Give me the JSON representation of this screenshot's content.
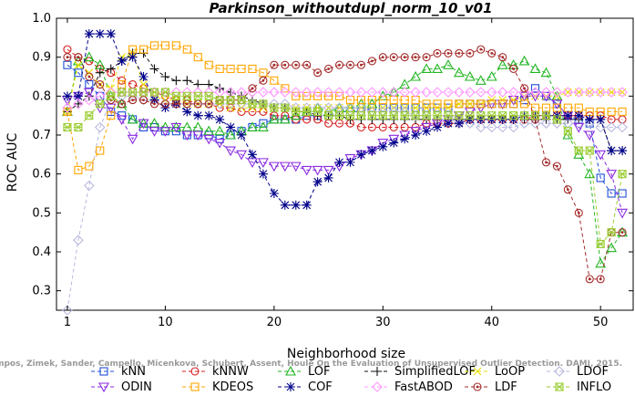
{
  "chart_data": {
    "type": "line",
    "title": "Parkinson_withoutdupl_norm_10_v01",
    "xlabel": "Neighborhood size",
    "ylabel": "ROC AUC",
    "xlim": [
      0,
      53
    ],
    "ylim": [
      0.25,
      1.0
    ],
    "xticks": [
      1,
      10,
      20,
      30,
      40,
      50
    ],
    "yticks": [
      0.3,
      0.4,
      0.5,
      0.6,
      0.7,
      0.8,
      0.9,
      1.0
    ],
    "xtick_labels": [
      "1",
      "10",
      "20",
      "30",
      "40",
      "50"
    ],
    "ytick_labels": [
      "0.3",
      "0.4",
      "0.5",
      "0.6",
      "0.7",
      "0.8",
      "0.9",
      "1.0"
    ],
    "grid": false,
    "legend_position": "bottom",
    "credit": "Campos, Zimek, Sander, Campello, Micenkova, Schubert, Assent, Houle On the Evaluation of Unsupervised Outlier Detection. DAMI, 2015.",
    "x": [
      1,
      2,
      3,
      4,
      5,
      6,
      7,
      8,
      9,
      10,
      11,
      12,
      13,
      14,
      15,
      16,
      17,
      18,
      19,
      20,
      21,
      22,
      23,
      24,
      25,
      26,
      27,
      28,
      29,
      30,
      31,
      32,
      33,
      34,
      35,
      36,
      37,
      38,
      39,
      40,
      41,
      42,
      43,
      44,
      45,
      46,
      47,
      48,
      49,
      50,
      51,
      52
    ],
    "series": [
      {
        "name": "kNN",
        "color": "#1f4fd6",
        "marker": "square",
        "values": [
          0.88,
          0.86,
          0.83,
          0.8,
          0.76,
          0.75,
          0.74,
          0.72,
          0.72,
          0.71,
          0.71,
          0.7,
          0.7,
          0.7,
          0.69,
          0.7,
          0.71,
          0.72,
          0.73,
          0.74,
          0.74,
          0.74,
          0.75,
          0.75,
          0.75,
          0.76,
          0.76,
          0.76,
          0.77,
          0.77,
          0.77,
          0.77,
          0.77,
          0.77,
          0.77,
          0.77,
          0.78,
          0.78,
          0.78,
          0.78,
          0.78,
          0.78,
          0.79,
          0.82,
          0.8,
          0.78,
          0.75,
          0.74,
          0.73,
          0.59,
          0.55,
          0.55
        ]
      },
      {
        "name": "kNNW",
        "color": "#d62020",
        "marker": "circle",
        "values": [
          0.92,
          0.9,
          0.89,
          0.87,
          0.86,
          0.84,
          0.83,
          0.82,
          0.81,
          0.8,
          0.79,
          0.79,
          0.78,
          0.78,
          0.77,
          0.77,
          0.76,
          0.76,
          0.76,
          0.75,
          0.75,
          0.74,
          0.74,
          0.74,
          0.73,
          0.73,
          0.73,
          0.72,
          0.72,
          0.72,
          0.72,
          0.72,
          0.72,
          0.73,
          0.73,
          0.73,
          0.73,
          0.74,
          0.74,
          0.74,
          0.74,
          0.74,
          0.74,
          0.75,
          0.75,
          0.75,
          0.75,
          0.75,
          0.75,
          0.75,
          0.74,
          0.74
        ]
      },
      {
        "name": "LOF",
        "color": "#22b522",
        "marker": "triangle-up",
        "values": [
          0.76,
          0.89,
          0.9,
          0.88,
          0.8,
          0.78,
          0.74,
          0.73,
          0.73,
          0.72,
          0.72,
          0.72,
          0.72,
          0.71,
          0.71,
          0.7,
          0.71,
          0.72,
          0.72,
          0.74,
          0.74,
          0.75,
          0.76,
          0.77,
          0.76,
          0.77,
          0.77,
          0.78,
          0.78,
          0.8,
          0.81,
          0.83,
          0.85,
          0.87,
          0.87,
          0.88,
          0.86,
          0.85,
          0.84,
          0.85,
          0.88,
          0.88,
          0.89,
          0.87,
          0.86,
          0.8,
          0.7,
          0.65,
          0.6,
          0.37,
          0.41,
          0.45
        ]
      },
      {
        "name": "SimplifiedLOF",
        "color": "#111111",
        "marker": "plus",
        "values": [
          0.76,
          0.78,
          0.8,
          0.86,
          0.87,
          0.89,
          0.91,
          0.91,
          0.87,
          0.85,
          0.84,
          0.84,
          0.83,
          0.83,
          0.82,
          0.81,
          0.8,
          0.79,
          0.78,
          0.77,
          0.77,
          0.76,
          0.76,
          0.75,
          0.75,
          0.75,
          0.74,
          0.74,
          0.74,
          0.74,
          0.74,
          0.74,
          0.74,
          0.74,
          0.74,
          0.74,
          0.74,
          0.74,
          0.74,
          0.74,
          0.74,
          0.74,
          0.74,
          0.74,
          0.74,
          0.74,
          0.74,
          0.74,
          0.74,
          0.74,
          0.66,
          0.66
        ]
      },
      {
        "name": "LoOP",
        "color": "#e8e000",
        "marker": "x",
        "values": [
          0.76,
          0.88,
          0.86,
          0.83,
          0.82,
          0.9,
          0.91,
          0.83,
          0.8,
          0.79,
          0.79,
          0.78,
          0.78,
          0.78,
          0.78,
          0.77,
          0.77,
          0.77,
          0.77,
          0.77,
          0.77,
          0.77,
          0.77,
          0.77,
          0.77,
          0.77,
          0.77,
          0.77,
          0.77,
          0.77,
          0.77,
          0.77,
          0.77,
          0.77,
          0.77,
          0.77,
          0.78,
          0.78,
          0.78,
          0.79,
          0.79,
          0.79,
          0.8,
          0.8,
          0.8,
          0.8,
          0.81,
          0.81,
          0.81,
          0.81,
          0.81,
          0.81
        ]
      },
      {
        "name": "LDOF",
        "color": "#b8b8e0",
        "marker": "diamond",
        "values": [
          0.25,
          0.43,
          0.57,
          0.72,
          0.79,
          0.8,
          0.8,
          0.79,
          0.79,
          0.78,
          0.78,
          0.78,
          0.78,
          0.78,
          0.78,
          0.78,
          0.78,
          0.78,
          0.78,
          0.78,
          0.78,
          0.77,
          0.77,
          0.77,
          0.77,
          0.77,
          0.77,
          0.77,
          0.76,
          0.76,
          0.76,
          0.76,
          0.75,
          0.75,
          0.74,
          0.74,
          0.73,
          0.73,
          0.72,
          0.72,
          0.72,
          0.72,
          0.73,
          0.73,
          0.73,
          0.73,
          0.73,
          0.73,
          0.73,
          0.72,
          0.72,
          0.72
        ]
      },
      {
        "name": "ODIN",
        "color": "#8a2be2",
        "marker": "triangle-down",
        "values": [
          0.79,
          0.8,
          0.81,
          0.77,
          0.77,
          0.74,
          0.69,
          0.73,
          0.71,
          0.71,
          0.72,
          0.7,
          0.7,
          0.69,
          0.68,
          0.66,
          0.65,
          0.63,
          0.63,
          0.62,
          0.62,
          0.62,
          0.61,
          0.61,
          0.61,
          0.62,
          0.64,
          0.65,
          0.66,
          0.68,
          0.69,
          0.7,
          0.71,
          0.72,
          0.73,
          0.74,
          0.75,
          0.76,
          0.77,
          0.78,
          0.78,
          0.79,
          0.8,
          0.8,
          0.8,
          0.78,
          0.75,
          0.72,
          0.7,
          0.65,
          0.6,
          0.5
        ]
      },
      {
        "name": "KDEOS",
        "color": "#ffa500",
        "marker": "square",
        "values": [
          0.76,
          0.61,
          0.62,
          0.66,
          0.75,
          0.83,
          0.92,
          0.92,
          0.93,
          0.93,
          0.93,
          0.92,
          0.9,
          0.88,
          0.87,
          0.87,
          0.87,
          0.87,
          0.86,
          0.84,
          0.82,
          0.8,
          0.8,
          0.8,
          0.8,
          0.8,
          0.79,
          0.79,
          0.79,
          0.79,
          0.79,
          0.79,
          0.79,
          0.78,
          0.78,
          0.78,
          0.78,
          0.78,
          0.78,
          0.78,
          0.78,
          0.78,
          0.78,
          0.77,
          0.77,
          0.77,
          0.77,
          0.77,
          0.76,
          0.76,
          0.76,
          0.76
        ]
      },
      {
        "name": "COF",
        "color": "#00008b",
        "marker": "star",
        "values": [
          0.8,
          0.8,
          0.96,
          0.96,
          0.96,
          0.89,
          0.9,
          0.85,
          0.79,
          0.77,
          0.78,
          0.76,
          0.75,
          0.75,
          0.74,
          0.72,
          0.7,
          0.65,
          0.6,
          0.55,
          0.52,
          0.52,
          0.52,
          0.58,
          0.59,
          0.63,
          0.63,
          0.65,
          0.66,
          0.67,
          0.68,
          0.69,
          0.7,
          0.71,
          0.72,
          0.73,
          0.73,
          0.74,
          0.74,
          0.74,
          0.74,
          0.74,
          0.75,
          0.75,
          0.75,
          0.75,
          0.75,
          0.75,
          0.74,
          0.74,
          0.66,
          0.66
        ]
      },
      {
        "name": "FastABOD",
        "color": "#ff99ff",
        "marker": "diamond",
        "values": [
          0.77,
          0.78,
          0.79,
          0.8,
          0.81,
          0.81,
          0.81,
          0.81,
          0.81,
          0.81,
          0.81,
          0.81,
          0.81,
          0.81,
          0.81,
          0.81,
          0.81,
          0.81,
          0.81,
          0.81,
          0.81,
          0.81,
          0.81,
          0.81,
          0.81,
          0.81,
          0.81,
          0.81,
          0.81,
          0.81,
          0.81,
          0.81,
          0.81,
          0.81,
          0.81,
          0.81,
          0.81,
          0.81,
          0.81,
          0.81,
          0.81,
          0.81,
          0.81,
          0.81,
          0.81,
          0.81,
          0.81,
          0.81,
          0.81,
          0.81,
          0.81,
          0.81
        ]
      },
      {
        "name": "LDF",
        "color": "#a52a2a",
        "marker": "circle-dot",
        "values": [
          0.9,
          0.9,
          0.85,
          0.83,
          0.79,
          0.78,
          0.79,
          0.79,
          0.78,
          0.78,
          0.78,
          0.78,
          0.78,
          0.78,
          0.79,
          0.79,
          0.79,
          0.82,
          0.84,
          0.88,
          0.88,
          0.88,
          0.88,
          0.86,
          0.87,
          0.88,
          0.88,
          0.88,
          0.89,
          0.9,
          0.9,
          0.9,
          0.9,
          0.9,
          0.91,
          0.91,
          0.91,
          0.91,
          0.92,
          0.91,
          0.9,
          0.87,
          0.82,
          0.74,
          0.63,
          0.62,
          0.56,
          0.5,
          0.33,
          0.33,
          0.45,
          0.45
        ]
      },
      {
        "name": "INFLO",
        "color": "#9acd32",
        "marker": "star-box",
        "values": [
          0.72,
          0.72,
          0.75,
          0.78,
          0.8,
          0.81,
          0.81,
          0.81,
          0.81,
          0.81,
          0.8,
          0.8,
          0.8,
          0.8,
          0.79,
          0.79,
          0.79,
          0.78,
          0.78,
          0.77,
          0.77,
          0.76,
          0.76,
          0.76,
          0.75,
          0.75,
          0.75,
          0.75,
          0.75,
          0.75,
          0.75,
          0.75,
          0.75,
          0.75,
          0.75,
          0.75,
          0.75,
          0.75,
          0.75,
          0.75,
          0.75,
          0.75,
          0.75,
          0.75,
          0.75,
          0.74,
          0.71,
          0.66,
          0.66,
          0.42,
          0.45,
          0.6
        ]
      }
    ]
  }
}
